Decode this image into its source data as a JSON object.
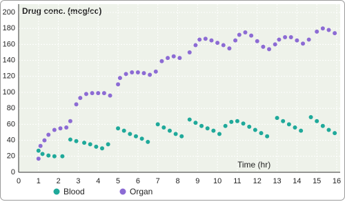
{
  "chart_data": {
    "type": "scatter",
    "title": "Drug conc. (mcg/cc)",
    "x_label": "Time (hr)",
    "xlim": [
      0,
      16
    ],
    "xticks": [
      0,
      1,
      2,
      3,
      4,
      5,
      6,
      7,
      8,
      9,
      10,
      11,
      12,
      13,
      14,
      15,
      16
    ],
    "ylim": [
      0,
      200
    ],
    "yticks": [
      0,
      20,
      40,
      60,
      80,
      100,
      120,
      140,
      160,
      180,
      200
    ],
    "grid": true,
    "legend": "bottom",
    "series": [
      {
        "name": "Blood",
        "color": "#1fa99a",
        "x": [
          1.0,
          1.2,
          1.5,
          1.8,
          2.2,
          2.6,
          2.9,
          3.3,
          3.6,
          3.9,
          4.2,
          4.5,
          5.0,
          5.3,
          5.6,
          5.9,
          6.2,
          6.5,
          7.0,
          7.3,
          7.6,
          7.9,
          8.2,
          8.6,
          8.9,
          9.2,
          9.5,
          9.8,
          10.1,
          10.4,
          10.7,
          11.0,
          11.3,
          11.6,
          11.9,
          12.2,
          12.5,
          13.0,
          13.3,
          13.6,
          13.9,
          14.2,
          14.7,
          15.0,
          15.3,
          15.6,
          15.9
        ],
        "values": [
          27,
          23,
          21,
          20,
          20,
          41,
          39,
          37,
          35,
          32,
          30,
          35,
          55,
          52,
          48,
          45,
          42,
          38,
          60,
          56,
          52,
          48,
          45,
          66,
          62,
          58,
          55,
          52,
          48,
          58,
          63,
          64,
          61,
          57,
          53,
          49,
          45,
          68,
          64,
          60,
          56,
          52,
          69,
          64,
          58,
          53,
          49
        ]
      },
      {
        "name": "Organ",
        "color": "#8c6bd4",
        "x": [
          1.0,
          1.1,
          1.3,
          1.5,
          1.8,
          2.1,
          2.4,
          2.6,
          2.9,
          3.1,
          3.4,
          3.7,
          4.0,
          4.3,
          4.6,
          5.0,
          5.1,
          5.4,
          5.7,
          6.0,
          6.3,
          6.6,
          6.9,
          7.2,
          7.5,
          7.8,
          8.1,
          8.6,
          8.9,
          9.1,
          9.4,
          9.7,
          10.0,
          10.3,
          10.6,
          10.9,
          11.1,
          11.4,
          11.7,
          12.0,
          12.3,
          12.6,
          12.9,
          13.1,
          13.4,
          13.7,
          14.0,
          14.3,
          14.6,
          15.0,
          15.3,
          15.6,
          15.9
        ],
        "values": [
          17,
          33,
          40,
          47,
          53,
          55,
          56,
          64,
          85,
          93,
          98,
          99,
          99,
          99,
          96,
          110,
          118,
          123,
          125,
          125,
          124,
          122,
          126,
          139,
          143,
          145,
          143,
          150,
          159,
          166,
          167,
          165,
          162,
          159,
          155,
          165,
          172,
          175,
          171,
          164,
          157,
          154,
          160,
          166,
          169,
          169,
          165,
          161,
          166,
          176,
          180,
          178,
          174
        ]
      }
    ]
  }
}
